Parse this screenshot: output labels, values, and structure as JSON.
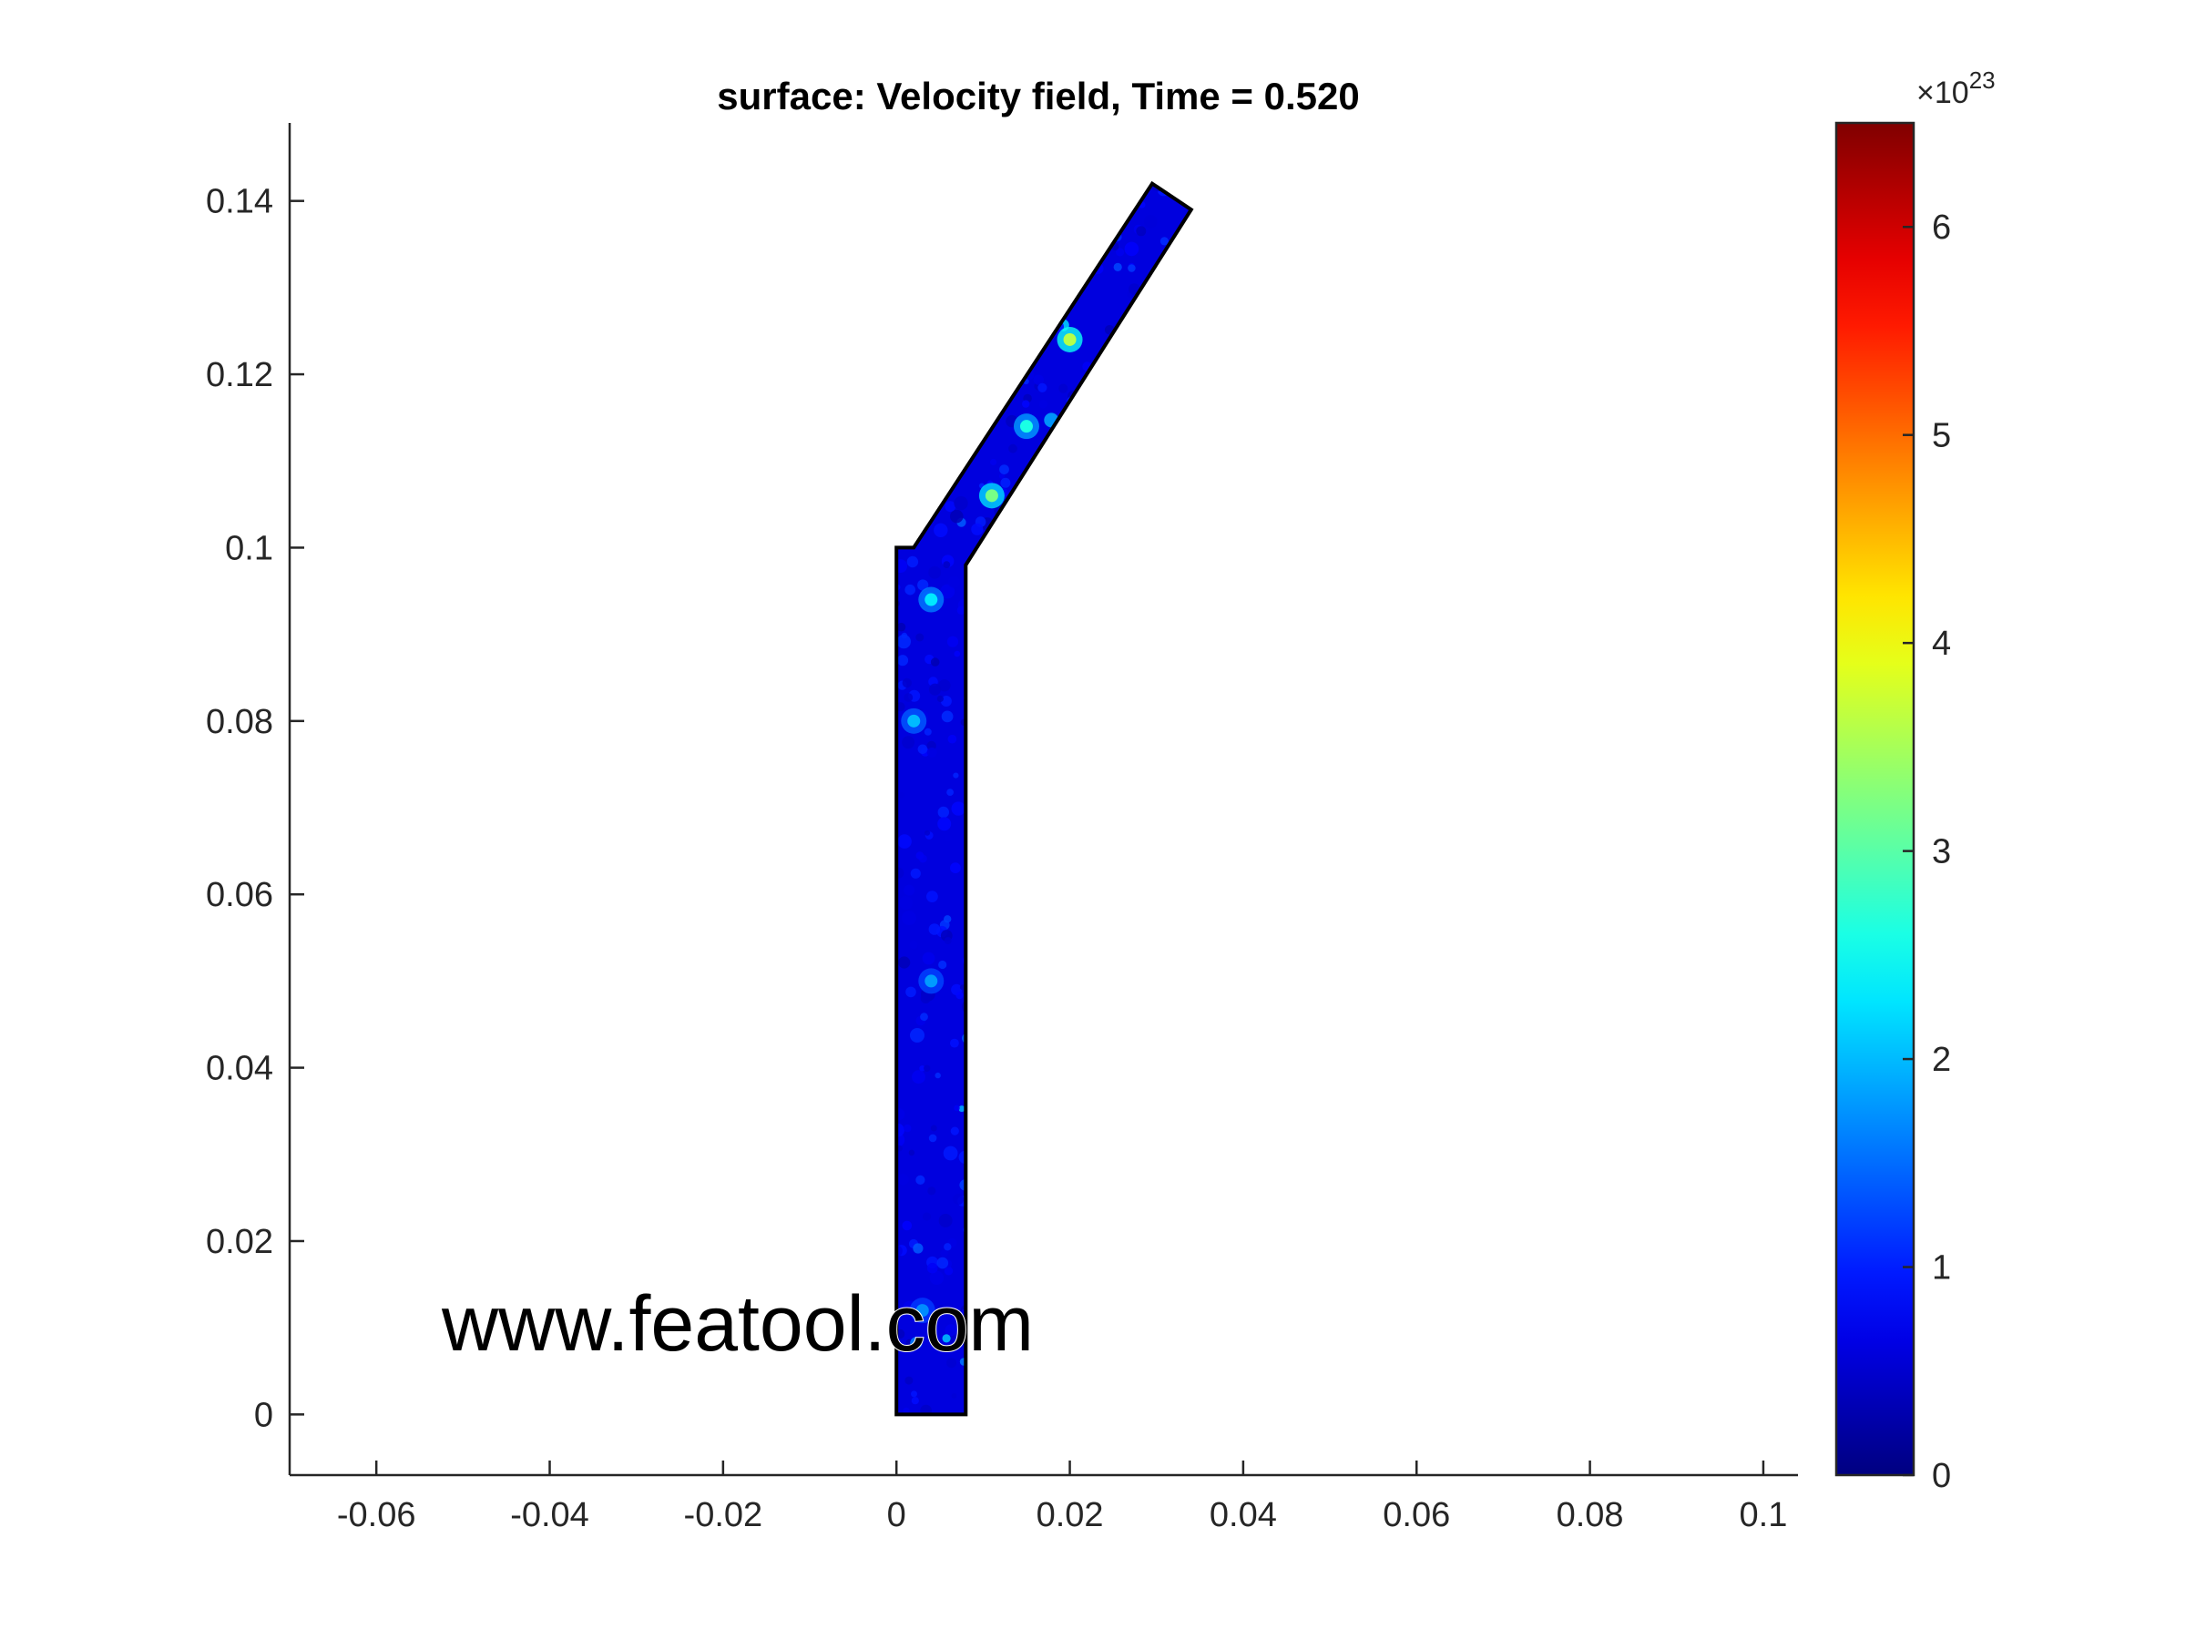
{
  "chart_data": {
    "type": "heatmap",
    "title": "surface: Velocity field, Time = 0.520",
    "xlabel": "",
    "ylabel": "",
    "xlim": [
      -0.07,
      0.104
    ],
    "ylim": [
      -0.007,
      0.149
    ],
    "xticks": [
      -0.06,
      -0.04,
      -0.02,
      0,
      0.02,
      0.04,
      0.06,
      0.08,
      0.1
    ],
    "xtick_labels": [
      "-0.06",
      "-0.04",
      "-0.02",
      "0",
      "0.02",
      "0.04",
      "0.06",
      "0.08",
      "0.1"
    ],
    "yticks": [
      0,
      0.02,
      0.04,
      0.06,
      0.08,
      0.1,
      0.12,
      0.14
    ],
    "ytick_labels": [
      "0",
      "0.02",
      "0.04",
      "0.06",
      "0.08",
      "0.1",
      "0.12",
      "0.14"
    ],
    "grid": false,
    "domain_outline": [
      [
        0,
        0
      ],
      [
        0.008,
        0
      ],
      [
        0.008,
        0.098
      ],
      [
        0.034,
        0.139
      ],
      [
        0.0295,
        0.142
      ],
      [
        0.002,
        0.1
      ],
      [
        0,
        0.1
      ]
    ],
    "colorbar": {
      "colormap": "jet",
      "range": [
        0,
        6.5
      ],
      "ticks": [
        0,
        1,
        2,
        3,
        4,
        5,
        6
      ],
      "tick_labels": [
        "0",
        "1",
        "2",
        "3",
        "4",
        "5",
        "6"
      ],
      "multiplier_base": "×10",
      "multiplier_exponent": "23"
    },
    "field_summary": {
      "typical_value": 0.6,
      "max_value": 3.6,
      "hotspots": [
        {
          "x": 0.02,
          "y": 0.124,
          "value": 3.6
        },
        {
          "x": 0.011,
          "y": 0.106,
          "value": 3.2
        },
        {
          "x": 0.015,
          "y": 0.114,
          "value": 2.6
        },
        {
          "x": 0.004,
          "y": 0.094,
          "value": 2.3
        },
        {
          "x": 0.002,
          "y": 0.08,
          "value": 2.0
        },
        {
          "x": 0.004,
          "y": 0.05,
          "value": 1.8
        },
        {
          "x": 0.003,
          "y": 0.012,
          "value": 1.7
        }
      ]
    }
  },
  "watermark": "www.featool.com"
}
